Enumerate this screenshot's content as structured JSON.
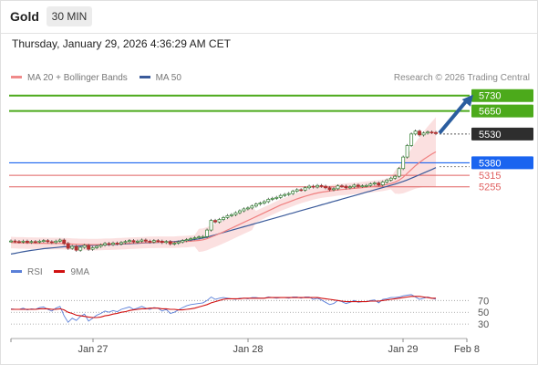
{
  "header": {
    "title": "Gold",
    "timeframe": "30 MIN",
    "datetime": "Thursday, January 29, 2026 4:36:29 AM CET"
  },
  "legend": {
    "ma20": "MA 20 + Bollinger Bands",
    "ma50": "MA 50",
    "credit": "Research © 2026 Trading Central"
  },
  "rsi_legend": {
    "rsi": "RSI",
    "ma9": "9MA"
  },
  "colors": {
    "resistance": "#4caa1b",
    "pivot": "#2e2e2e",
    "support1": "#1a64f0",
    "support_lines": "#e06060",
    "ma20": "#f08080",
    "ma50": "#3a5a9a",
    "bands_fill": "#fbe0e0",
    "candle_up": "#2f7d2f",
    "candle_down": "#b03030",
    "arrow": "#2a5d9f",
    "rsi": "#5a7fd8",
    "rsi_ma": "#d01010"
  },
  "chart_data": {
    "type": "candlestick",
    "ylim": [
      4850,
      5800
    ],
    "levels": [
      {
        "label": "5730",
        "value": 5730,
        "kind": "resistance"
      },
      {
        "label": "5650",
        "value": 5650,
        "kind": "resistance"
      },
      {
        "label": "5530",
        "value": 5530,
        "kind": "pivot"
      },
      {
        "label": "5380",
        "value": 5380,
        "kind": "support"
      },
      {
        "label": "5315",
        "value": 5315,
        "kind": "support"
      },
      {
        "label": "5255",
        "value": 5255,
        "kind": "support"
      }
    ],
    "x_labels": [
      "Jan 27",
      "Jan 28",
      "Jan 29",
      "Feb 8"
    ],
    "x_label_positions": [
      0.18,
      0.52,
      0.86,
      1.0
    ],
    "close": [
      4973,
      4970,
      4968,
      4972,
      4966,
      4970,
      4968,
      4972,
      4975,
      4969,
      4965,
      4972,
      4978,
      4960,
      4935,
      4945,
      4925,
      4940,
      4950,
      4930,
      4938,
      4945,
      4952,
      4960,
      4955,
      4962,
      4958,
      4965,
      4970,
      4975,
      4968,
      4972,
      4978,
      4972,
      4968,
      4975,
      4972,
      4965,
      4970,
      4958,
      4962,
      4968,
      4975,
      4980,
      4985,
      4990,
      4994,
      4996,
      5030,
      5080,
      5072,
      5085,
      5095,
      5105,
      5110,
      5120,
      5130,
      5140,
      5145,
      5155,
      5165,
      5170,
      5178,
      5190,
      5195,
      5200,
      5210,
      5215,
      5220,
      5232,
      5240,
      5238,
      5250,
      5258,
      5254,
      5262,
      5258,
      5250,
      5240,
      5245,
      5260,
      5258,
      5250,
      5255,
      5264,
      5258,
      5260,
      5262,
      5270,
      5275,
      5265,
      5280,
      5290,
      5300,
      5310,
      5350,
      5410,
      5470,
      5530,
      5545,
      5525,
      5535,
      5540,
      5538,
      5532
    ],
    "ma20": [
      4965,
      4964,
      4963,
      4963,
      4962,
      4962,
      4961,
      4961,
      4961,
      4960,
      4960,
      4960,
      4960,
      4959,
      4958,
      4957,
      4956,
      4955,
      4955,
      4954,
      4954,
      4954,
      4955,
      4956,
      4956,
      4957,
      4958,
      4959,
      4960,
      4961,
      4962,
      4963,
      4964,
      4965,
      4966,
      4966,
      4967,
      4967,
      4967,
      4967,
      4967,
      4968,
      4969,
      4970,
      4972,
      4974,
      4976,
      4979,
      4985,
      4994,
      5002,
      5011,
      5020,
      5030,
      5040,
      5050,
      5060,
      5070,
      5080,
      5090,
      5100,
      5110,
      5120,
      5130,
      5140,
      5150,
      5160,
      5168,
      5176,
      5184,
      5192,
      5199,
      5206,
      5212,
      5218,
      5223,
      5227,
      5230,
      5233,
      5236,
      5239,
      5241,
      5243,
      5245,
      5247,
      5249,
      5251,
      5253,
      5255,
      5258,
      5260,
      5263,
      5267,
      5272,
      5279,
      5290,
      5305,
      5325,
      5345,
      5365,
      5382,
      5398,
      5412,
      5425,
      5437
    ],
    "ma50": [
      4905,
      4909,
      4913,
      4917,
      4921,
      4924,
      4927,
      4930,
      4933,
      4935,
      4937,
      4939,
      4941,
      4943,
      4944,
      4945,
      4946,
      4947,
      4948,
      4949,
      4950,
      4951,
      4952,
      4953,
      4954,
      4955,
      4956,
      4957,
      4958,
      4959,
      4960,
      4961,
      4962,
      4963,
      4964,
      4965,
      4966,
      4967,
      4968,
      4969,
      4970,
      4972,
      4974,
      4976,
      4978,
      4981,
      4984,
      4988,
      4993,
      4999,
      5005,
      5011,
      5017,
      5023,
      5029,
      5035,
      5041,
      5047,
      5053,
      5059,
      5065,
      5071,
      5077,
      5083,
      5089,
      5095,
      5101,
      5107,
      5113,
      5119,
      5125,
      5131,
      5137,
      5143,
      5149,
      5155,
      5161,
      5167,
      5173,
      5179,
      5185,
      5191,
      5197,
      5203,
      5209,
      5215,
      5221,
      5227,
      5233,
      5239,
      5245,
      5251,
      5257,
      5263,
      5269,
      5276,
      5283,
      5291,
      5300,
      5309,
      5318,
      5327,
      5336,
      5345,
      5355
    ],
    "rsi": [
      56,
      55,
      55,
      57,
      54,
      56,
      55,
      58,
      59,
      55,
      52,
      57,
      60,
      44,
      33,
      40,
      36,
      43,
      47,
      35,
      40,
      45,
      48,
      52,
      50,
      53,
      51,
      55,
      57,
      59,
      55,
      57,
      60,
      57,
      55,
      58,
      57,
      52,
      55,
      48,
      50,
      54,
      58,
      61,
      63,
      64,
      65,
      66,
      70,
      76,
      72,
      74,
      75,
      74,
      73,
      72,
      74,
      74,
      73,
      75,
      75,
      74,
      74,
      76,
      75,
      74,
      75,
      75,
      74,
      76,
      76,
      74,
      76,
      76,
      72,
      74,
      71,
      67,
      63,
      65,
      70,
      68,
      65,
      67,
      70,
      67,
      68,
      68,
      70,
      71,
      66,
      72,
      73,
      75,
      75,
      76,
      78,
      79,
      80,
      76,
      72,
      74,
      76,
      74,
      72
    ],
    "rsi_ma": [
      55,
      55,
      55,
      55,
      55,
      55,
      55,
      56,
      56,
      56,
      55,
      55,
      56,
      54,
      50,
      48,
      45,
      44,
      43,
      42,
      41,
      41,
      42,
      44,
      45,
      47,
      48,
      50,
      51,
      53,
      54,
      55,
      56,
      56,
      57,
      57,
      57,
      56,
      56,
      55,
      55,
      54,
      54,
      55,
      56,
      57,
      59,
      61,
      63,
      66,
      68,
      70,
      72,
      73,
      73,
      73,
      73,
      74,
      74,
      74,
      74,
      74,
      74,
      75,
      75,
      75,
      75,
      75,
      75,
      75,
      75,
      75,
      75,
      75,
      75,
      75,
      74,
      73,
      72,
      71,
      70,
      69,
      68,
      68,
      68,
      68,
      68,
      68,
      69,
      69,
      69,
      70,
      71,
      72,
      73,
      74,
      75,
      76,
      77,
      77,
      77,
      76,
      75,
      74,
      74
    ]
  }
}
